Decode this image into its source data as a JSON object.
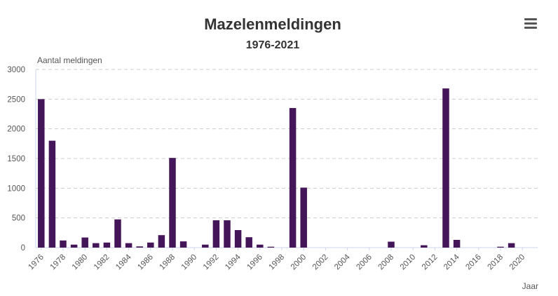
{
  "header": {
    "title": "Mazelenmeldingen",
    "subtitle": "1976-2021",
    "menu_icon": "hamburger-menu-icon"
  },
  "chart_data": {
    "type": "bar",
    "title": "Mazelenmeldingen",
    "subtitle": "1976-2021",
    "xlabel": "Jaar",
    "ylabel": "Aantal meldingen",
    "ylim": [
      0,
      3000
    ],
    "yticks": [
      0,
      500,
      1000,
      1500,
      2000,
      2500,
      3000
    ],
    "xticks": [
      "1976",
      "1978",
      "1980",
      "1982",
      "1984",
      "1986",
      "1988",
      "1990",
      "1992",
      "1994",
      "1996",
      "1998",
      "2000",
      "2002",
      "2004",
      "2006",
      "2008",
      "2010",
      "2012",
      "2014",
      "2016",
      "2018",
      "2020"
    ],
    "grid": true,
    "bar_color": "#45155a",
    "categories": [
      "1976",
      "1977",
      "1978",
      "1979",
      "1980",
      "1981",
      "1982",
      "1983",
      "1984",
      "1985",
      "1986",
      "1987",
      "1988",
      "1989",
      "1990",
      "1991",
      "1992",
      "1993",
      "1994",
      "1995",
      "1996",
      "1997",
      "1998",
      "1999",
      "2000",
      "2001",
      "2002",
      "2003",
      "2004",
      "2005",
      "2006",
      "2007",
      "2008",
      "2009",
      "2010",
      "2011",
      "2012",
      "2013",
      "2014",
      "2015",
      "2016",
      "2017",
      "2018",
      "2019",
      "2020",
      "2021"
    ],
    "values": [
      2500,
      1800,
      120,
      50,
      170,
      75,
      85,
      475,
      75,
      20,
      85,
      210,
      1510,
      105,
      0,
      50,
      460,
      460,
      295,
      175,
      50,
      15,
      0,
      2350,
      1010,
      0,
      0,
      0,
      0,
      0,
      0,
      0,
      100,
      0,
      0,
      40,
      0,
      2680,
      130,
      0,
      0,
      0,
      15,
      75,
      0,
      0
    ]
  }
}
